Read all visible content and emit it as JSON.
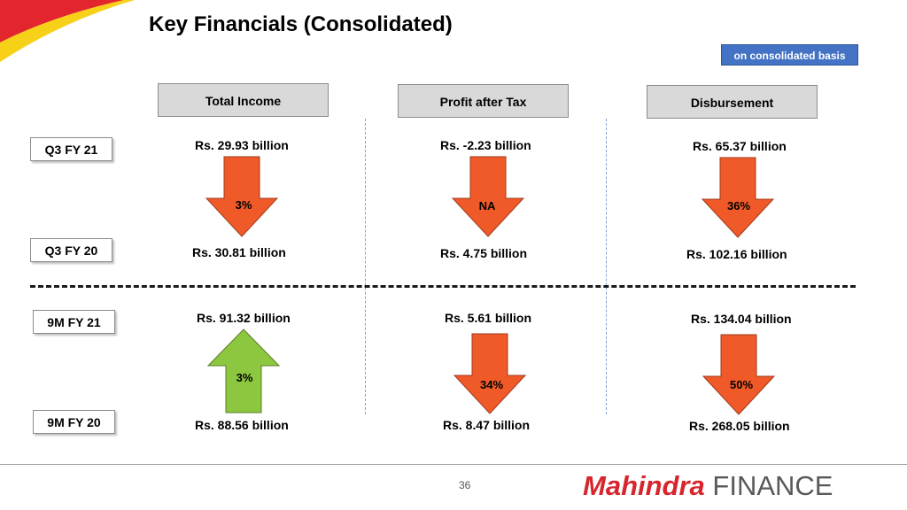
{
  "title": "Key Financials (Consolidated)",
  "badge": "on consolidated basis",
  "columns": [
    "Total Income",
    "Profit after Tax",
    "Disbursement"
  ],
  "rows": {
    "q3_fy21": "Q3 FY 21",
    "q3_fy20": "Q3 FY 20",
    "nm_fy21": "9M FY 21",
    "nm_fy20": "9M FY 20"
  },
  "quarterly": {
    "total_income": {
      "current": "Rs. 29.93 billion",
      "previous": "Rs. 30.81 billion",
      "change": "3%",
      "direction": "down",
      "color": "#f05a28"
    },
    "pat": {
      "current": "Rs. -2.23 billion",
      "previous": "Rs. 4.75 billion",
      "change": "NA",
      "direction": "down",
      "color": "#f05a28"
    },
    "disbursement": {
      "current": "Rs. 65.37 billion",
      "previous": "Rs. 102.16 billion",
      "change": "36%",
      "direction": "down",
      "color": "#f05a28"
    }
  },
  "nine_month": {
    "total_income": {
      "current": "Rs. 91.32 billion",
      "previous": "Rs. 88.56 billion",
      "change": "3%",
      "direction": "up",
      "color": "#8dc63f"
    },
    "pat": {
      "current": "Rs. 5.61 billion",
      "previous": "Rs. 8.47 billion",
      "change": "34%",
      "direction": "down",
      "color": "#f05a28"
    },
    "disbursement": {
      "current": "Rs. 134.04 billion",
      "previous": "Rs. 268.05 billion",
      "change": "50%",
      "direction": "down",
      "color": "#f05a28"
    }
  },
  "page_number": "36",
  "logo": {
    "brand": "Mahindra",
    "suffix": "FINANCE",
    "brand_color": "#d7252d",
    "suffix_color": "#5a5a5a"
  },
  "accent_colors": {
    "corner_red": "#e3262e",
    "corner_yellow": "#f7d117",
    "badge_blue": "#4472c4"
  }
}
